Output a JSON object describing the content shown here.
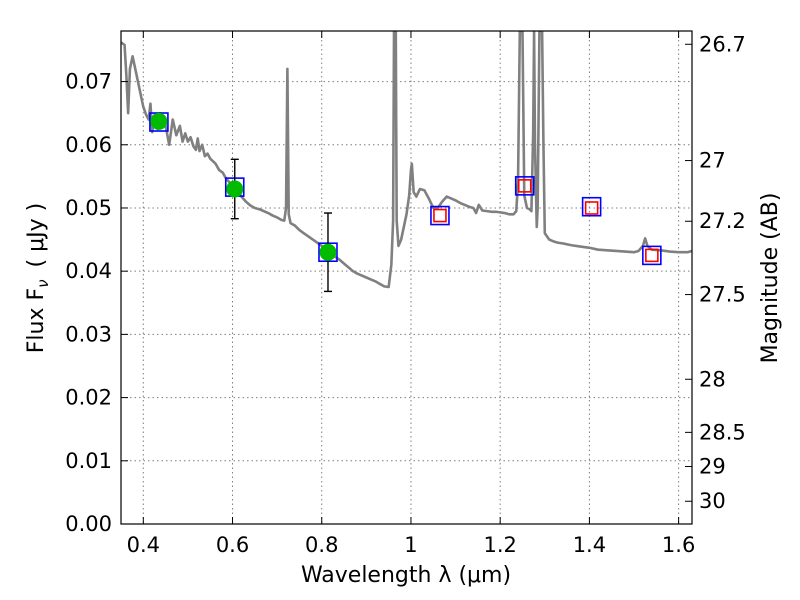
{
  "chart_data": {
    "type": "scatter",
    "xlabel": "Wavelength  λ (μm)",
    "ylabel_left": "Flux  F",
    "ylabel_left_sub": "ν",
    "ylabel_left_unit": "( μJy )",
    "ylabel_right": "Magnitude (AB)",
    "xlim": [
      0.35,
      1.63
    ],
    "ylim": [
      0.0,
      0.078
    ],
    "x_ticks": [
      0.4,
      0.6,
      0.8,
      1.0,
      1.2,
      1.4,
      1.6
    ],
    "x_tick_labels": [
      "0.4",
      "0.6",
      "0.8",
      "1",
      "1.2",
      "1.4",
      "1.6"
    ],
    "y_ticks": [
      0.0,
      0.01,
      0.02,
      0.03,
      0.04,
      0.05,
      0.06,
      0.07
    ],
    "y_tick_labels": [
      "0.00",
      "0.01",
      "0.02",
      "0.03",
      "0.04",
      "0.05",
      "0.06",
      "0.07"
    ],
    "magnitude_ticks": [
      {
        "mag": 26.7,
        "label": "26.7",
        "flux": 0.0759
      },
      {
        "mag": 27.0,
        "label": "27",
        "flux": 0.0575
      },
      {
        "mag": 27.2,
        "label": "27.2",
        "flux": 0.0479
      },
      {
        "mag": 27.5,
        "label": "27.5",
        "flux": 0.0363
      },
      {
        "mag": 28.0,
        "label": "28",
        "flux": 0.0229
      },
      {
        "mag": 28.5,
        "label": "28.5",
        "flux": 0.0145
      },
      {
        "mag": 29.0,
        "label": "29",
        "flux": 0.0091
      },
      {
        "mag": 30.0,
        "label": "30",
        "flux": 0.0036
      }
    ],
    "series": [
      {
        "name": "model-spectrum",
        "kind": "line",
        "color": "#808080",
        "points": [
          [
            0.35,
            0.0762
          ],
          [
            0.358,
            0.0758
          ],
          [
            0.362,
            0.071
          ],
          [
            0.366,
            0.065
          ],
          [
            0.37,
            0.072
          ],
          [
            0.376,
            0.074
          ],
          [
            0.382,
            0.072
          ],
          [
            0.388,
            0.07
          ],
          [
            0.394,
            0.068
          ],
          [
            0.4,
            0.066
          ],
          [
            0.406,
            0.0648
          ],
          [
            0.412,
            0.064
          ],
          [
            0.416,
            0.0665
          ],
          [
            0.42,
            0.062
          ],
          [
            0.426,
            0.0648
          ],
          [
            0.432,
            0.0625
          ],
          [
            0.438,
            0.065
          ],
          [
            0.444,
            0.064
          ],
          [
            0.45,
            0.063
          ],
          [
            0.458,
            0.06
          ],
          [
            0.466,
            0.064
          ],
          [
            0.474,
            0.0615
          ],
          [
            0.482,
            0.063
          ],
          [
            0.488,
            0.0605
          ],
          [
            0.494,
            0.0618
          ],
          [
            0.5,
            0.0605
          ],
          [
            0.506,
            0.0612
          ],
          [
            0.512,
            0.0598
          ],
          [
            0.518,
            0.0592
          ],
          [
            0.522,
            0.061
          ],
          [
            0.526,
            0.059
          ],
          [
            0.532,
            0.06
          ],
          [
            0.538,
            0.0582
          ],
          [
            0.544,
            0.0586
          ],
          [
            0.55,
            0.0578
          ],
          [
            0.556,
            0.0574
          ],
          [
            0.562,
            0.057
          ],
          [
            0.57,
            0.056
          ],
          [
            0.578,
            0.0556
          ],
          [
            0.586,
            0.0546
          ],
          [
            0.594,
            0.054
          ],
          [
            0.602,
            0.0535
          ],
          [
            0.61,
            0.053
          ],
          [
            0.62,
            0.0518
          ],
          [
            0.63,
            0.051
          ],
          [
            0.64,
            0.0504
          ],
          [
            0.65,
            0.05
          ],
          [
            0.66,
            0.0498
          ],
          [
            0.67,
            0.0495
          ],
          [
            0.68,
            0.0492
          ],
          [
            0.69,
            0.0488
          ],
          [
            0.7,
            0.0485
          ],
          [
            0.71,
            0.0481
          ],
          [
            0.716,
            0.048
          ],
          [
            0.72,
            0.05
          ],
          [
            0.723,
            0.072
          ],
          [
            0.726,
            0.049
          ],
          [
            0.73,
            0.0476
          ],
          [
            0.74,
            0.0472
          ],
          [
            0.75,
            0.0465
          ],
          [
            0.76,
            0.046
          ],
          [
            0.77,
            0.0455
          ],
          [
            0.78,
            0.045
          ],
          [
            0.79,
            0.0445
          ],
          [
            0.8,
            0.044
          ],
          [
            0.81,
            0.0435
          ],
          [
            0.82,
            0.0428
          ],
          [
            0.83,
            0.0423
          ],
          [
            0.84,
            0.0418
          ],
          [
            0.85,
            0.0412
          ],
          [
            0.86,
            0.0406
          ],
          [
            0.87,
            0.04
          ],
          [
            0.88,
            0.0396
          ],
          [
            0.89,
            0.0393
          ],
          [
            0.9,
            0.039
          ],
          [
            0.91,
            0.0387
          ],
          [
            0.92,
            0.0384
          ],
          [
            0.93,
            0.038
          ],
          [
            0.94,
            0.0376
          ],
          [
            0.95,
            0.0375
          ],
          [
            0.956,
            0.041
          ],
          [
            0.96,
            0.048
          ],
          [
            0.962,
            0.078
          ],
          [
            0.966,
            0.078
          ],
          [
            0.968,
            0.048
          ],
          [
            0.972,
            0.044
          ],
          [
            0.978,
            0.045
          ],
          [
            0.984,
            0.047
          ],
          [
            0.99,
            0.049
          ],
          [
            0.996,
            0.052
          ],
          [
            1.0,
            0.056
          ],
          [
            1.002,
            0.057
          ],
          [
            1.006,
            0.0525
          ],
          [
            1.012,
            0.0518
          ],
          [
            1.02,
            0.053
          ],
          [
            1.03,
            0.0528
          ],
          [
            1.04,
            0.0515
          ],
          [
            1.05,
            0.05
          ],
          [
            1.06,
            0.05
          ],
          [
            1.07,
            0.051
          ],
          [
            1.08,
            0.0518
          ],
          [
            1.09,
            0.0515
          ],
          [
            1.1,
            0.0512
          ],
          [
            1.11,
            0.0508
          ],
          [
            1.12,
            0.0505
          ],
          [
            1.13,
            0.0502
          ],
          [
            1.14,
            0.05
          ],
          [
            1.146,
            0.0492
          ],
          [
            1.152,
            0.0505
          ],
          [
            1.16,
            0.0496
          ],
          [
            1.17,
            0.0495
          ],
          [
            1.18,
            0.0494
          ],
          [
            1.19,
            0.0494
          ],
          [
            1.2,
            0.0493
          ],
          [
            1.21,
            0.0492
          ],
          [
            1.22,
            0.049
          ],
          [
            1.23,
            0.049
          ],
          [
            1.236,
            0.0495
          ],
          [
            1.24,
            0.054
          ],
          [
            1.244,
            0.078
          ],
          [
            1.25,
            0.078
          ],
          [
            1.254,
            0.052
          ],
          [
            1.26,
            0.05
          ],
          [
            1.266,
            0.0498
          ],
          [
            1.27,
            0.0495
          ],
          [
            1.274,
            0.062
          ],
          [
            1.276,
            0.078
          ],
          [
            1.278,
            0.06
          ],
          [
            1.282,
            0.047
          ],
          [
            1.284,
            0.05
          ],
          [
            1.288,
            0.078
          ],
          [
            1.294,
            0.078
          ],
          [
            1.297,
            0.06
          ],
          [
            1.3,
            0.046
          ],
          [
            1.31,
            0.045
          ],
          [
            1.32,
            0.0447
          ],
          [
            1.33,
            0.0445
          ],
          [
            1.34,
            0.0444
          ],
          [
            1.36,
            0.0441
          ],
          [
            1.38,
            0.0439
          ],
          [
            1.4,
            0.0437
          ],
          [
            1.42,
            0.0434
          ],
          [
            1.44,
            0.0433
          ],
          [
            1.46,
            0.0432
          ],
          [
            1.48,
            0.0431
          ],
          [
            1.5,
            0.043
          ],
          [
            1.51,
            0.0432
          ],
          [
            1.52,
            0.044
          ],
          [
            1.525,
            0.0452
          ],
          [
            1.53,
            0.044
          ],
          [
            1.54,
            0.0434
          ],
          [
            1.56,
            0.0433
          ],
          [
            1.58,
            0.0431
          ],
          [
            1.6,
            0.043
          ],
          [
            1.62,
            0.043
          ],
          [
            1.63,
            0.0432
          ]
        ]
      },
      {
        "name": "model-photometry",
        "kind": "open-square",
        "color": "#0000ff",
        "points": [
          [
            0.435,
            0.0636
          ],
          [
            0.605,
            0.0533
          ],
          [
            0.814,
            0.043
          ],
          [
            1.065,
            0.0488
          ],
          [
            1.255,
            0.0535
          ],
          [
            1.405,
            0.0502
          ],
          [
            1.54,
            0.0425
          ]
        ]
      },
      {
        "name": "upper-limits",
        "kind": "open-square",
        "color": "#ff0000",
        "points": [
          [
            1.065,
            0.0488
          ],
          [
            1.255,
            0.0535
          ],
          [
            1.405,
            0.05
          ],
          [
            1.54,
            0.0425
          ]
        ]
      },
      {
        "name": "observed-photometry",
        "kind": "filled-circle",
        "color": "#00bb00",
        "points": [
          {
            "x": 0.435,
            "y": 0.0637,
            "yerr": 0.0
          },
          {
            "x": 0.605,
            "y": 0.053,
            "yerr": 0.0047
          },
          {
            "x": 0.814,
            "y": 0.043,
            "yerr": 0.0062
          }
        ]
      }
    ]
  }
}
